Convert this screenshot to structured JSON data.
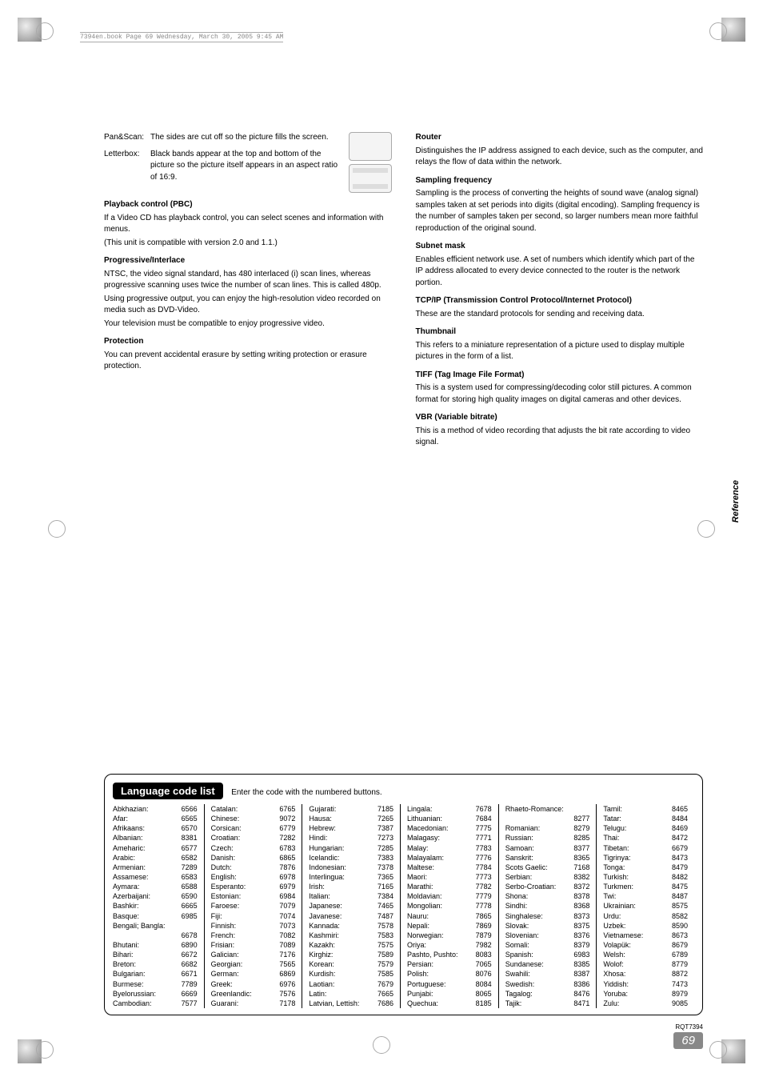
{
  "printer_mark": "7394en.book  Page 69  Wednesday, March 30, 2005  9:45 AM",
  "side_tab": "Reference",
  "rqt": "RQT7394",
  "page_number": "69",
  "left": {
    "panscan_label": "Pan&Scan:",
    "panscan_text": "The sides are cut off so the picture fills the screen.",
    "letterbox_label": "Letterbox:",
    "letterbox_text": "Black bands appear at the top and bottom of the picture so the picture itself appears in an aspect ratio of 16:9.",
    "pbc_h": "Playback control (PBC)",
    "pbc_1": "If a Video CD has playback control, you can select scenes and information with menus.",
    "pbc_2": "(This unit is compatible with version 2.0 and 1.1.)",
    "prog_h": "Progressive/Interlace",
    "prog_1": "NTSC, the video signal standard, has 480 interlaced (i) scan lines, whereas progressive scanning uses twice the number of scan lines. This is called 480p.",
    "prog_2": "Using progressive output, you can enjoy the high-resolution video recorded on media such as DVD-Video.",
    "prog_3": "Your television must be compatible to enjoy progressive video.",
    "prot_h": "Protection",
    "prot_1": "You can prevent accidental erasure by setting writing protection or erasure protection."
  },
  "right": {
    "router_h": "Router",
    "router_1": "Distinguishes the IP address assigned to each device, such as the computer, and relays the flow of data within the network.",
    "samp_h": "Sampling frequency",
    "samp_1": "Sampling is the process of converting the heights of sound wave (analog signal) samples taken at set periods into digits (digital encoding). Sampling frequency is the number of samples taken per second, so larger numbers mean more faithful reproduction of the original sound.",
    "sub_h": "Subnet mask",
    "sub_1": "Enables efficient network use. A set of numbers which identify which part of the IP address allocated to every device connected to the router is the network portion.",
    "tcp_h": "TCP/IP (Transmission Control Protocol/Internet Protocol)",
    "tcp_1": "These are the standard protocols for sending and receiving data.",
    "thumb_h": "Thumbnail",
    "thumb_1": "This refers to a miniature representation of a picture used to display multiple pictures in the form of a list.",
    "tiff_h": "TIFF (Tag Image File Format)",
    "tiff_1": "This is a system used for compressing/decoding color still pictures. A common format for storing high quality images on digital cameras and other devices.",
    "vbr_h": "VBR (Variable bitrate)",
    "vbr_1": "This is a method of video recording that adjusts the bit rate according to video signal."
  },
  "lang": {
    "title": "Language code list",
    "sub": "Enter the code with the numbered buttons.",
    "cols": [
      [
        [
          "Abkhazian:",
          "6566"
        ],
        [
          "Afar:",
          "6565"
        ],
        [
          "Afrikaans:",
          "6570"
        ],
        [
          "Albanian:",
          "8381"
        ],
        [
          "Ameharic:",
          "6577"
        ],
        [
          "Arabic:",
          "6582"
        ],
        [
          "Armenian:",
          "7289"
        ],
        [
          "Assamese:",
          "6583"
        ],
        [
          "Aymara:",
          "6588"
        ],
        [
          "Azerbaijani:",
          "6590"
        ],
        [
          "Bashkir:",
          "6665"
        ],
        [
          "Basque:",
          "6985"
        ],
        [
          "Bengali; Bangla:",
          ""
        ],
        [
          "",
          "6678"
        ],
        [
          "Bhutani:",
          "6890"
        ],
        [
          "Bihari:",
          "6672"
        ],
        [
          "Breton:",
          "6682"
        ],
        [
          "Bulgarian:",
          "6671"
        ],
        [
          "Burmese:",
          "7789"
        ],
        [
          "Byelorussian:",
          "6669"
        ],
        [
          "Cambodian:",
          "7577"
        ]
      ],
      [
        [
          "Catalan:",
          "6765"
        ],
        [
          "Chinese:",
          "9072"
        ],
        [
          "Corsican:",
          "6779"
        ],
        [
          "Croatian:",
          "7282"
        ],
        [
          "Czech:",
          "6783"
        ],
        [
          "Danish:",
          "6865"
        ],
        [
          "Dutch:",
          "7876"
        ],
        [
          "English:",
          "6978"
        ],
        [
          "Esperanto:",
          "6979"
        ],
        [
          "Estonian:",
          "6984"
        ],
        [
          "Faroese:",
          "7079"
        ],
        [
          "Fiji:",
          "7074"
        ],
        [
          "Finnish:",
          "7073"
        ],
        [
          "French:",
          "7082"
        ],
        [
          "Frisian:",
          "7089"
        ],
        [
          "Galician:",
          "7176"
        ],
        [
          "Georgian:",
          "7565"
        ],
        [
          "German:",
          "6869"
        ],
        [
          "Greek:",
          "6976"
        ],
        [
          "Greenlandic:",
          "7576"
        ],
        [
          "Guarani:",
          "7178"
        ]
      ],
      [
        [
          "Gujarati:",
          "7185"
        ],
        [
          "Hausa:",
          "7265"
        ],
        [
          "Hebrew:",
          "7387"
        ],
        [
          "Hindi:",
          "7273"
        ],
        [
          "Hungarian:",
          "7285"
        ],
        [
          "Icelandic:",
          "7383"
        ],
        [
          "Indonesian:",
          "7378"
        ],
        [
          "Interlingua:",
          "7365"
        ],
        [
          "Irish:",
          "7165"
        ],
        [
          "Italian:",
          "7384"
        ],
        [
          "Japanese:",
          "7465"
        ],
        [
          "Javanese:",
          "7487"
        ],
        [
          "Kannada:",
          "7578"
        ],
        [
          "Kashmiri:",
          "7583"
        ],
        [
          "Kazakh:",
          "7575"
        ],
        [
          "Kirghiz:",
          "7589"
        ],
        [
          "Korean:",
          "7579"
        ],
        [
          "Kurdish:",
          "7585"
        ],
        [
          "Laotian:",
          "7679"
        ],
        [
          "Latin:",
          "7665"
        ],
        [
          "Latvian, Lettish:",
          "7686"
        ]
      ],
      [
        [
          "Lingala:",
          "7678"
        ],
        [
          "Lithuanian:",
          "7684"
        ],
        [
          "Macedonian:",
          "7775"
        ],
        [
          "Malagasy:",
          "7771"
        ],
        [
          "Malay:",
          "7783"
        ],
        [
          "Malayalam:",
          "7776"
        ],
        [
          "Maltese:",
          "7784"
        ],
        [
          "Maori:",
          "7773"
        ],
        [
          "Marathi:",
          "7782"
        ],
        [
          "Moldavian:",
          "7779"
        ],
        [
          "Mongolian:",
          "7778"
        ],
        [
          "Nauru:",
          "7865"
        ],
        [
          "Nepali:",
          "7869"
        ],
        [
          "Norwegian:",
          "7879"
        ],
        [
          "Oriya:",
          "7982"
        ],
        [
          "Pashto, Pushto:",
          "8083"
        ],
        [
          "Persian:",
          "7065"
        ],
        [
          "Polish:",
          "8076"
        ],
        [
          "Portuguese:",
          "8084"
        ],
        [
          "Punjabi:",
          "8065"
        ],
        [
          "Quechua:",
          "8185"
        ]
      ],
      [
        [
          "Rhaeto-Romance:",
          ""
        ],
        [
          "",
          "8277"
        ],
        [
          "Romanian:",
          "8279"
        ],
        [
          "Russian:",
          "8285"
        ],
        [
          "Samoan:",
          "8377"
        ],
        [
          "Sanskrit:",
          "8365"
        ],
        [
          "Scots Gaelic:",
          "7168"
        ],
        [
          "Serbian:",
          "8382"
        ],
        [
          "Serbo-Croatian:",
          "8372"
        ],
        [
          "Shona:",
          "8378"
        ],
        [
          "Sindhi:",
          "8368"
        ],
        [
          "Singhalese:",
          "8373"
        ],
        [
          "Slovak:",
          "8375"
        ],
        [
          "Slovenian:",
          "8376"
        ],
        [
          "Somali:",
          "8379"
        ],
        [
          "Spanish:",
          "6983"
        ],
        [
          "Sundanese:",
          "8385"
        ],
        [
          "Swahili:",
          "8387"
        ],
        [
          "Swedish:",
          "8386"
        ],
        [
          "Tagalog:",
          "8476"
        ],
        [
          "Tajik:",
          "8471"
        ]
      ],
      [
        [
          "Tamil:",
          "8465"
        ],
        [
          "Tatar:",
          "8484"
        ],
        [
          "Telugu:",
          "8469"
        ],
        [
          "Thai:",
          "8472"
        ],
        [
          "Tibetan:",
          "6679"
        ],
        [
          "Tigrinya:",
          "8473"
        ],
        [
          "Tonga:",
          "8479"
        ],
        [
          "Turkish:",
          "8482"
        ],
        [
          "Turkmen:",
          "8475"
        ],
        [
          "Twi:",
          "8487"
        ],
        [
          "Ukrainian:",
          "8575"
        ],
        [
          "Urdu:",
          "8582"
        ],
        [
          "Uzbek:",
          "8590"
        ],
        [
          "Vietnamese:",
          "8673"
        ],
        [
          "Volapük:",
          "8679"
        ],
        [
          "Welsh:",
          "6789"
        ],
        [
          "Wolof:",
          "8779"
        ],
        [
          "Xhosa:",
          "8872"
        ],
        [
          "Yiddish:",
          "7473"
        ],
        [
          "Yoruba:",
          "8979"
        ],
        [
          "Zulu:",
          "9085"
        ]
      ]
    ]
  }
}
